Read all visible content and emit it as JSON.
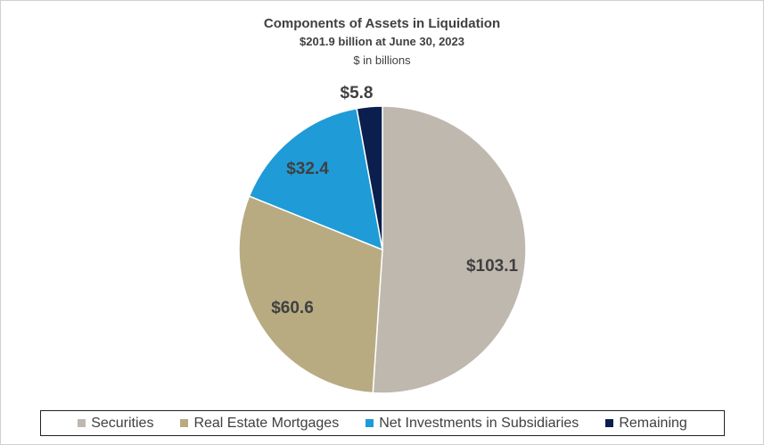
{
  "chart_data": {
    "type": "pie",
    "title": "Components of Assets in Liquidation",
    "subtitle": "$201.9 billion at June 30, 2023",
    "unit_note": "$ in billions",
    "categories": [
      "Securities",
      "Real Estate Mortgages",
      "Net Investments in Subsidiaries",
      "Remaining"
    ],
    "values": [
      103.1,
      60.6,
      32.4,
      5.8
    ],
    "data_labels": [
      "$103.1",
      "$60.6",
      "$32.4",
      "$5.8"
    ],
    "colors": [
      "#BFB8AE",
      "#B8AB82",
      "#1F9BD7",
      "#0A1F4E"
    ],
    "legend_position": "bottom"
  }
}
